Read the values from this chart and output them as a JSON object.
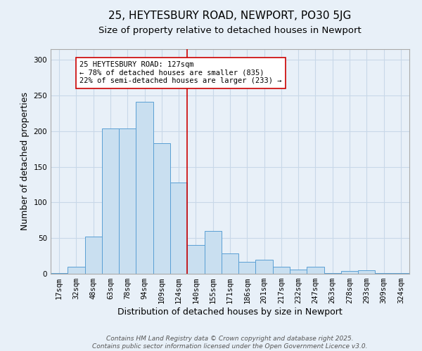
{
  "title": "25, HEYTESBURY ROAD, NEWPORT, PO30 5JG",
  "subtitle": "Size of property relative to detached houses in Newport",
  "xlabel": "Distribution of detached houses by size in Newport",
  "ylabel": "Number of detached properties",
  "bin_labels": [
    "17sqm",
    "32sqm",
    "48sqm",
    "63sqm",
    "78sqm",
    "94sqm",
    "109sqm",
    "124sqm",
    "140sqm",
    "155sqm",
    "171sqm",
    "186sqm",
    "201sqm",
    "217sqm",
    "232sqm",
    "247sqm",
    "263sqm",
    "278sqm",
    "293sqm",
    "309sqm",
    "324sqm"
  ],
  "bar_heights": [
    1,
    10,
    52,
    204,
    204,
    241,
    183,
    128,
    40,
    60,
    29,
    17,
    20,
    10,
    6,
    10,
    1,
    4,
    5,
    1,
    1
  ],
  "bar_color": "#c9dff0",
  "bar_edge_color": "#5a9fd4",
  "vline_x": 7.5,
  "vline_color": "#cc0000",
  "annotation_text": "25 HEYTESBURY ROAD: 127sqm\n← 78% of detached houses are smaller (835)\n22% of semi-detached houses are larger (233) →",
  "annotation_box_color": "#ffffff",
  "annotation_box_edge_color": "#cc0000",
  "ylim": [
    0,
    315
  ],
  "yticks": [
    0,
    50,
    100,
    150,
    200,
    250,
    300
  ],
  "grid_color": "#c8d8e8",
  "bg_color": "#e8f0f8",
  "footer_line1": "Contains HM Land Registry data © Crown copyright and database right 2025.",
  "footer_line2": "Contains public sector information licensed under the Open Government Licence v3.0.",
  "title_fontsize": 11,
  "subtitle_fontsize": 9.5,
  "axis_label_fontsize": 9,
  "tick_fontsize": 7.5,
  "annotation_fontsize": 7.5,
  "footer_fontsize": 6.5
}
